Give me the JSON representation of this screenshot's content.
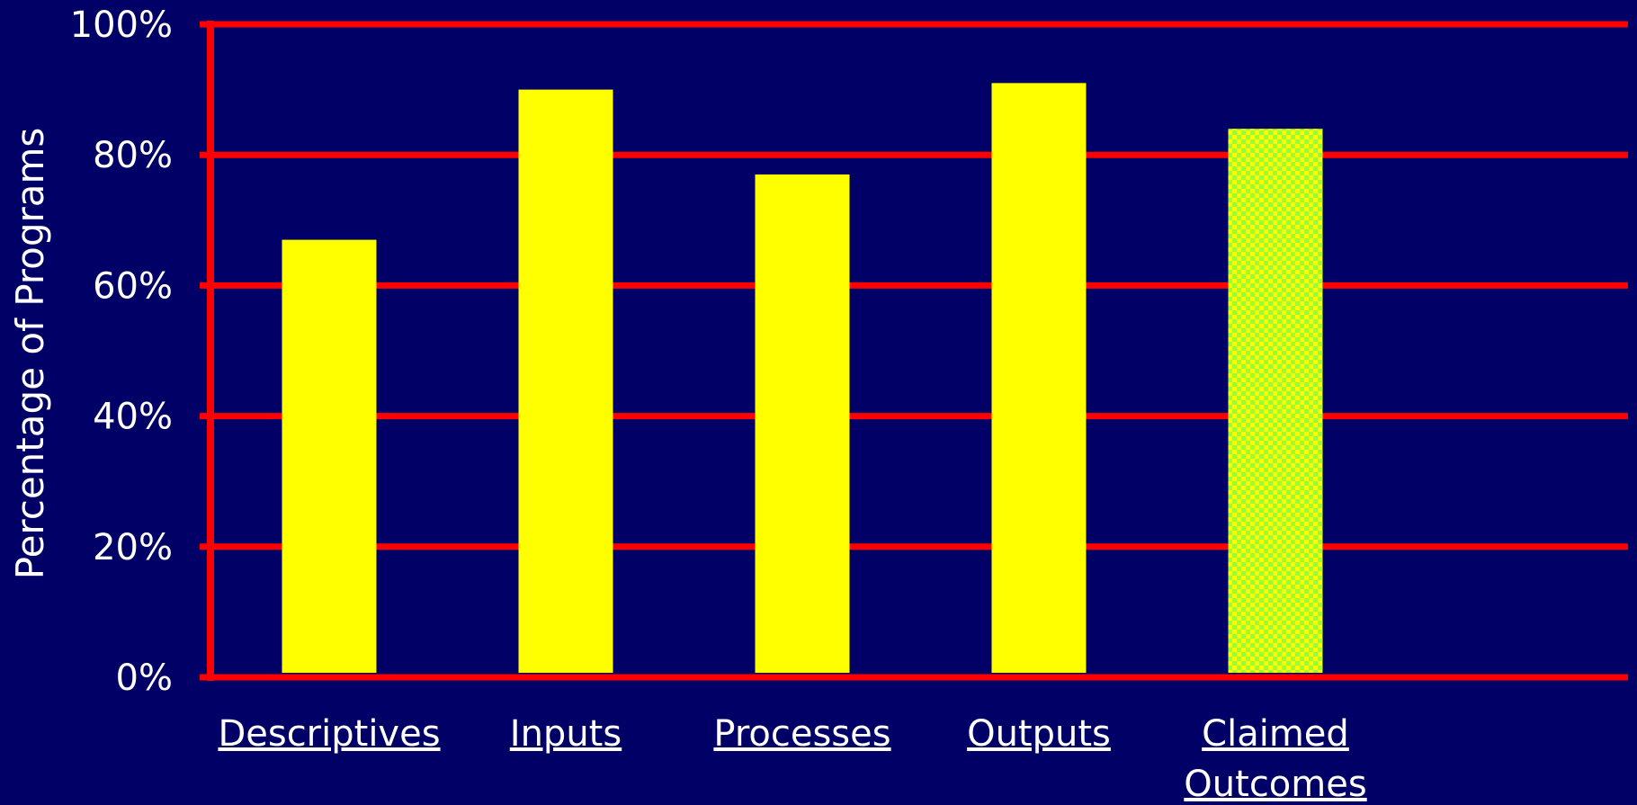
{
  "chart_data": {
    "type": "bar",
    "title": "",
    "xlabel": "",
    "ylabel": "Percentage of Programs",
    "ylim": [
      0,
      100
    ],
    "yticks": [
      "0%",
      "20%",
      "40%",
      "60%",
      "80%",
      "100%"
    ],
    "categories": [
      "Descriptives",
      "Inputs",
      "Processes",
      "Outputs",
      "Claimed Outcomes"
    ],
    "values": [
      67,
      90,
      77,
      91,
      84
    ],
    "grid": true,
    "legend": "none",
    "highlight_category": "Claimed Outcomes"
  },
  "colors": {
    "background": "#000066",
    "grid": "#ff0000",
    "bar": "#ffff00",
    "highlight_bar_base": "#99ff33",
    "highlight_bar_pattern": "#ffff00",
    "text": "#ffffff"
  }
}
